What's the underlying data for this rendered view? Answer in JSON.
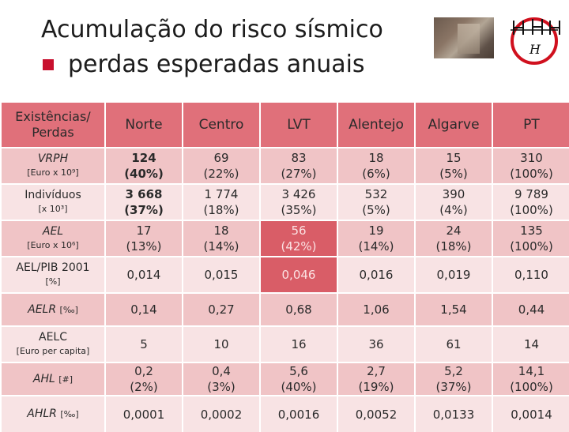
{
  "header": {
    "title": "Acumulação do risco sísmico",
    "subtitle": "perdas esperadas anuais",
    "logo_text": "H"
  },
  "colors": {
    "header_bg": "#e0707a",
    "row_dark": "#f0c4c6",
    "row_light": "#f8e3e4",
    "highlight": "#d95d67",
    "bullet": "#c8102e"
  },
  "table": {
    "corner": [
      "Existências/",
      "Perdas"
    ],
    "columns": [
      "Norte",
      "Centro",
      "LVT",
      "Alentejo",
      "Algarve",
      "PT"
    ],
    "rows": [
      {
        "label": "VRPH",
        "unit": "[Euro x 10⁹]",
        "cells": [
          [
            "124",
            "(40%)"
          ],
          [
            "69",
            "(22%)"
          ],
          [
            "83",
            "(27%)"
          ],
          [
            "18",
            "(6%)"
          ],
          [
            "15",
            "(5%)"
          ],
          [
            "310",
            "(100%)"
          ]
        ]
      },
      {
        "label": "Indivíduos",
        "unit": "[x 10³]",
        "cells": [
          [
            "3 668",
            "(37%)"
          ],
          [
            "1 774",
            "(18%)"
          ],
          [
            "3 426",
            "(35%)"
          ],
          [
            "532",
            "(5%)"
          ],
          [
            "390",
            "(4%)"
          ],
          [
            "9 789",
            "(100%)"
          ]
        ]
      },
      {
        "label": "AEL",
        "unit": "[Euro x 10⁶]",
        "cells": [
          [
            "17",
            "(13%)"
          ],
          [
            "18",
            "(14%)"
          ],
          [
            "56",
            "(42%)"
          ],
          [
            "19",
            "(14%)"
          ],
          [
            "24",
            "(18%)"
          ],
          [
            "135",
            "(100%)"
          ]
        ]
      },
      {
        "label": "AEL/PIB 2001",
        "unit": "[%]",
        "cells": [
          [
            "0,014"
          ],
          [
            "0,015"
          ],
          [
            "0,046"
          ],
          [
            "0,016"
          ],
          [
            "0,019"
          ],
          [
            "0,110"
          ]
        ]
      },
      {
        "label": "AELR",
        "unit": "[‰]",
        "cells": [
          [
            "0,14"
          ],
          [
            "0,27"
          ],
          [
            "0,68"
          ],
          [
            "1,06"
          ],
          [
            "1,54"
          ],
          [
            "0,44"
          ]
        ]
      },
      {
        "label": "AELC",
        "unit": "[Euro per capita]",
        "cells": [
          [
            "5"
          ],
          [
            "10"
          ],
          [
            "16"
          ],
          [
            "36"
          ],
          [
            "61"
          ],
          [
            "14"
          ]
        ]
      },
      {
        "label": "AHL",
        "unit": "[#]",
        "cells": [
          [
            "0,2",
            "(2%)"
          ],
          [
            "0,4",
            "(3%)"
          ],
          [
            "5,6",
            "(40%)"
          ],
          [
            "2,7",
            "(19%)"
          ],
          [
            "5,2",
            "(37%)"
          ],
          [
            "14,1",
            "(100%)"
          ]
        ]
      },
      {
        "label": "AHLR",
        "unit": "[‰]",
        "cells": [
          [
            "0,0001"
          ],
          [
            "0,0002"
          ],
          [
            "0,0016"
          ],
          [
            "0,0052"
          ],
          [
            "0,0133"
          ],
          [
            "0,0014"
          ]
        ]
      }
    ]
  }
}
